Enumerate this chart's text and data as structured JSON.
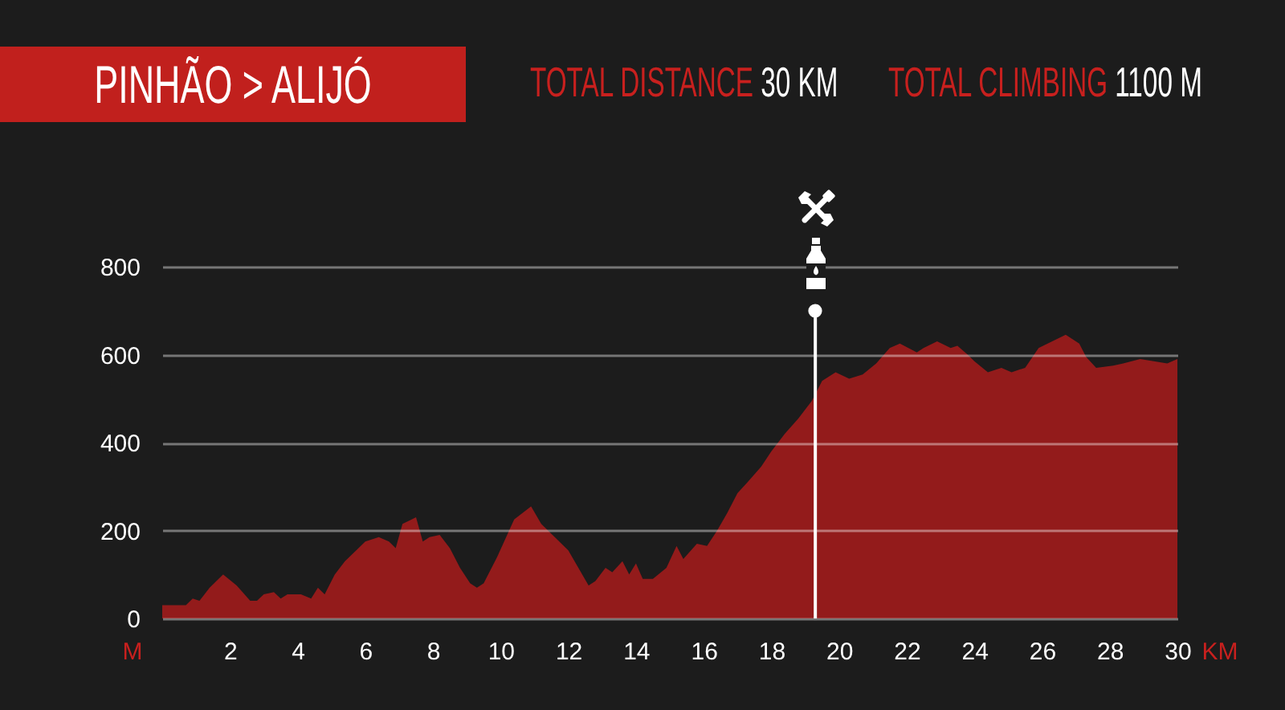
{
  "chart_data": {
    "type": "area",
    "title": "PINHÃO > ALIJÓ",
    "annotations": [
      "TOTAL DISTANCE 30 KM",
      "TOTAL CLIMBING 1100 M"
    ],
    "xlabel": "KM",
    "ylabel": "M",
    "x": [
      0,
      0.4,
      0.7,
      0.9,
      1.1,
      1.4,
      1.8,
      2.2,
      2.6,
      2.8,
      3.0,
      3.3,
      3.5,
      3.7,
      4.1,
      4.4,
      4.6,
      4.8,
      5.1,
      5.4,
      5.8,
      6.0,
      6.4,
      6.7,
      6.9,
      7.1,
      7.5,
      7.7,
      7.9,
      8.2,
      8.5,
      8.8,
      9.1,
      9.3,
      9.5,
      9.9,
      10.4,
      10.9,
      11.2,
      11.6,
      12.0,
      12.6,
      12.8,
      13.1,
      13.3,
      13.6,
      13.8,
      14.0,
      14.2,
      14.5,
      14.9,
      15.2,
      15.4,
      15.8,
      16.1,
      16.4,
      16.7,
      17.0,
      17.3,
      17.7,
      18.0,
      18.4,
      18.8,
      19.2,
      19.5,
      19.9,
      20.3,
      20.7,
      21.1,
      21.5,
      21.8,
      22.3,
      22.5,
      22.9,
      23.3,
      23.5,
      23.8,
      24.0,
      24.4,
      24.8,
      25.1,
      25.5,
      25.9,
      26.3,
      26.7,
      27.1,
      27.3,
      27.6,
      28.1,
      28.4,
      28.9,
      29.3,
      29.7,
      30
    ],
    "values": [
      30,
      30,
      30,
      45,
      40,
      70,
      100,
      75,
      40,
      40,
      55,
      60,
      45,
      55,
      55,
      45,
      70,
      55,
      100,
      130,
      160,
      175,
      185,
      175,
      160,
      215,
      230,
      175,
      185,
      190,
      160,
      115,
      80,
      70,
      80,
      140,
      225,
      255,
      215,
      185,
      155,
      75,
      85,
      115,
      105,
      130,
      100,
      125,
      90,
      90,
      115,
      165,
      135,
      170,
      165,
      200,
      240,
      285,
      310,
      345,
      380,
      420,
      455,
      495,
      540,
      560,
      545,
      555,
      580,
      615,
      625,
      605,
      615,
      630,
      615,
      620,
      600,
      585,
      560,
      570,
      560,
      570,
      615,
      630,
      645,
      625,
      595,
      570,
      575,
      580,
      590,
      585,
      580,
      590
    ],
    "color": "#931b1b",
    "xlim": [
      0,
      30
    ],
    "ylim": [
      0,
      800
    ],
    "xticks": [
      2,
      4,
      6,
      8,
      10,
      12,
      14,
      16,
      18,
      20,
      22,
      24,
      26,
      28,
      30
    ],
    "yticks": [
      0,
      200,
      400,
      600,
      800
    ],
    "grid": "y",
    "ref_lines": [
      {
        "axis": "x",
        "value": 19.3,
        "color": "#ffffff"
      }
    ]
  }
}
